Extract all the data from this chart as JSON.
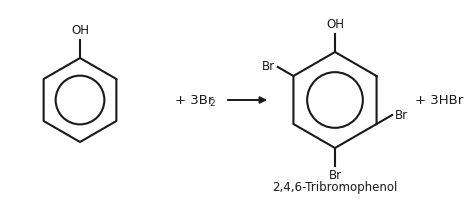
{
  "background_color": "#ffffff",
  "line_color": "#1a1a1a",
  "line_width": 1.5,
  "arrow_color": "#1a1a1a",
  "text_color": "#1a1a1a",
  "fig_width": 4.74,
  "fig_height": 2.1,
  "dpi": 100,
  "reagent_text": "+ 3Br",
  "reagent_sub": "2",
  "byproduct_text": "+ 3HBr",
  "product_name": "2,4,6-Tribromophenol",
  "font_size_labels": 8.5,
  "font_size_reagent": 9.5,
  "font_size_byproduct": 9.5,
  "font_size_name": 8.5,
  "font_size_sub": 6.5
}
